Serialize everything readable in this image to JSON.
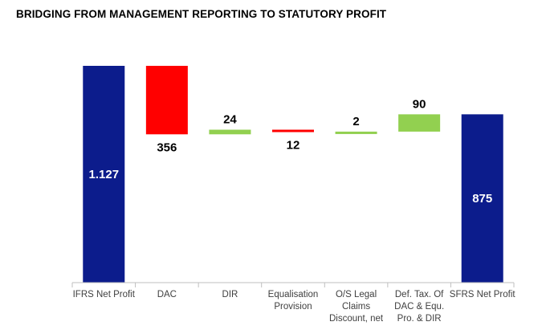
{
  "title": "BRIDGING FROM MANAGEMENT REPORTING TO STATUTORY PROFIT",
  "colors": {
    "total": "#0c1c8c",
    "decrease": "#ff0000",
    "increase": "#92d050",
    "axis": "#bfbfbf",
    "category_text": "#404040",
    "value_text_dark": "#000000",
    "value_text_light": "#ffffff"
  },
  "chart_data": {
    "type": "waterfall",
    "title": "BRIDGING FROM MANAGEMENT REPORTING TO STATUTORY PROFIT",
    "ylim": [
      0,
      1127
    ],
    "grid": false,
    "bars": [
      {
        "category": [
          "IFRS Net Profit"
        ],
        "kind": "total",
        "value": 1127,
        "label": "1.127"
      },
      {
        "category": [
          "DAC"
        ],
        "kind": "decrease",
        "value": -356,
        "label": "356"
      },
      {
        "category": [
          "DIR"
        ],
        "kind": "increase",
        "value": 24,
        "label": "24"
      },
      {
        "category": [
          "Equalisation",
          "Provision"
        ],
        "kind": "decrease",
        "value": -12,
        "label": "12"
      },
      {
        "category": [
          "O/S Legal",
          "Claims",
          "Discount, net"
        ],
        "kind": "increase",
        "value": 2,
        "label": "2"
      },
      {
        "category": [
          "Def. Tax. Of",
          "DAC & Equ.",
          "Pro. & DIR"
        ],
        "kind": "increase",
        "value": 90,
        "label": "90"
      },
      {
        "category": [
          "SFRS Net Profit"
        ],
        "kind": "total",
        "value": 875,
        "label": "875"
      }
    ]
  }
}
